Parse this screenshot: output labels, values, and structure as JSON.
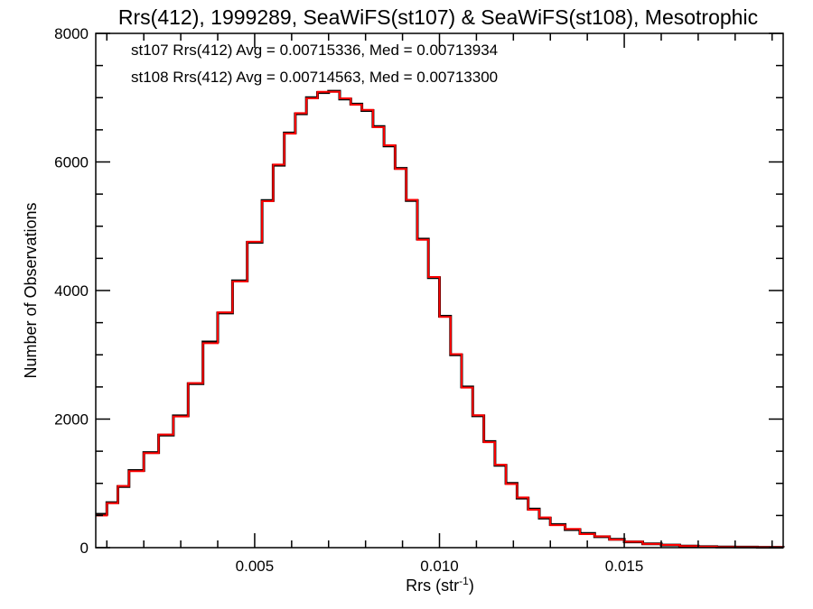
{
  "chart_data": {
    "type": "line",
    "title": "Rrs(412), 1999289, SeaWiFS(st107) & SeaWiFS(st108), Mesotrophic",
    "xlabel": "Rrs (str",
    "xlabel_sup": "-1",
    "xlabel_end": ")",
    "ylabel": "Number of Observations",
    "xlim": [
      0.0007,
      0.0193
    ],
    "ylim": [
      0,
      8000
    ],
    "xticks": [
      {
        "value": 0.005,
        "label": "0.005"
      },
      {
        "value": 0.01,
        "label": "0.010"
      },
      {
        "value": 0.015,
        "label": "0.015"
      }
    ],
    "yticks": [
      {
        "value": 0,
        "label": "0"
      },
      {
        "value": 2000,
        "label": "2000"
      },
      {
        "value": 4000,
        "label": "4000"
      },
      {
        "value": 6000,
        "label": "6000"
      },
      {
        "value": 8000,
        "label": "8000"
      }
    ],
    "grid": false,
    "legend_position": "top-left",
    "annotations": [
      {
        "text": "st107 Rrs(412) Avg = 0.00715336, Med = 0.00713934",
        "color": "#000000"
      },
      {
        "text": "st108 Rrs(412) Avg = 0.00714563, Med = 0.00713300",
        "color": "#ff0000"
      }
    ],
    "x": [
      0.0007,
      0.001,
      0.0013,
      0.0016,
      0.002,
      0.0024,
      0.0028,
      0.0032,
      0.0036,
      0.004,
      0.0044,
      0.0048,
      0.0052,
      0.0055,
      0.0058,
      0.0061,
      0.0064,
      0.0067,
      0.007,
      0.0073,
      0.0076,
      0.0079,
      0.0082,
      0.0085,
      0.0088,
      0.0091,
      0.0094,
      0.0097,
      0.01,
      0.0103,
      0.0106,
      0.0109,
      0.0112,
      0.0115,
      0.0118,
      0.0121,
      0.0124,
      0.0127,
      0.013,
      0.0134,
      0.0138,
      0.0142,
      0.0146,
      0.015,
      0.0155,
      0.016,
      0.0165,
      0.017,
      0.0175,
      0.018,
      0.0186,
      0.0193
    ],
    "series": [
      {
        "name": "st107",
        "color": "#000000",
        "values": [
          520,
          700,
          950,
          1200,
          1480,
          1750,
          2050,
          2550,
          3200,
          3650,
          4150,
          4750,
          5400,
          5950,
          6450,
          6750,
          7000,
          7080,
          7100,
          6980,
          6900,
          6800,
          6550,
          6250,
          5900,
          5400,
          4800,
          4200,
          3600,
          3000,
          2500,
          2050,
          1650,
          1280,
          1000,
          770,
          600,
          460,
          360,
          280,
          220,
          170,
          130,
          90,
          60,
          40,
          25,
          15,
          10,
          8,
          5,
          3
        ]
      },
      {
        "name": "st108",
        "color": "#ff0000",
        "values": [
          500,
          690,
          960,
          1190,
          1470,
          1760,
          2040,
          2560,
          3180,
          3660,
          4140,
          4760,
          5390,
          5960,
          6440,
          6760,
          6990,
          7090,
          7090,
          6990,
          6890,
          6810,
          6540,
          6260,
          5890,
          5410,
          4790,
          4210,
          3590,
          3010,
          2490,
          2060,
          1640,
          1290,
          990,
          780,
          590,
          470,
          350,
          290,
          210,
          175,
          125,
          92,
          58,
          42,
          24,
          16,
          9,
          7,
          5,
          2
        ]
      }
    ]
  }
}
